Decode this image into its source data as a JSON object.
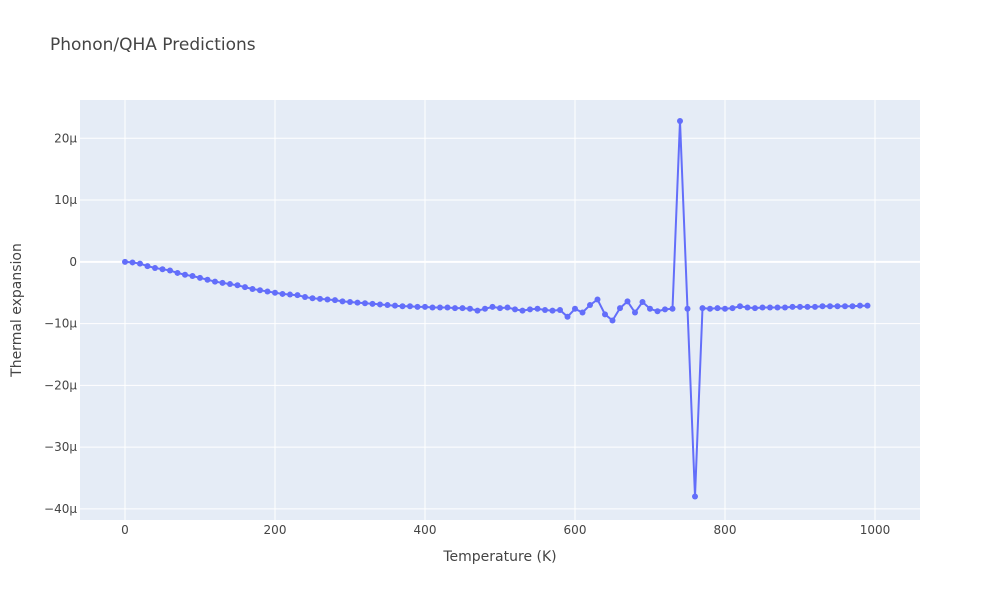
{
  "chart_data": {
    "type": "line",
    "title": "Phonon/QHA Predictions",
    "xlabel": "Temperature (K)",
    "ylabel": "Thermal expansion",
    "xlim": [
      -60,
      1060
    ],
    "ylim": [
      -41.8,
      26.2
    ],
    "x_ticks": [
      0,
      200,
      400,
      600,
      800,
      1000
    ],
    "y_ticks": [
      20,
      10,
      0,
      -10,
      -20,
      -30,
      -40
    ],
    "y_tick_labels": [
      "20µ",
      "10µ",
      "0",
      "−10µ",
      "−20µ",
      "−30µ",
      "−40µ"
    ],
    "grid": true,
    "series": [
      {
        "color": "#636efa",
        "x": [
          0,
          10,
          20,
          30,
          40,
          50,
          60,
          70,
          80,
          90,
          100,
          110,
          120,
          130,
          140,
          150,
          160,
          170,
          180,
          190,
          200,
          210,
          220,
          230,
          240,
          250,
          260,
          270,
          280,
          290,
          300,
          310,
          320,
          330,
          340,
          350,
          360,
          370,
          380,
          390,
          400,
          410,
          420,
          430,
          440,
          450,
          460,
          470,
          480,
          490,
          500,
          510,
          520,
          530,
          540,
          550,
          560,
          570,
          580,
          590,
          600,
          610,
          620,
          630,
          640,
          650,
          660,
          670,
          680,
          690,
          700,
          710,
          720,
          730,
          740,
          750,
          760,
          770,
          780,
          790,
          800,
          810,
          820,
          830,
          840,
          850,
          860,
          870,
          880,
          890,
          900,
          910,
          920,
          930,
          940,
          950,
          960,
          970,
          980,
          990
        ],
        "y": [
          0,
          -0.1,
          -0.3,
          -0.7,
          -1.0,
          -1.2,
          -1.4,
          -1.8,
          -2.1,
          -2.3,
          -2.6,
          -2.9,
          -3.2,
          -3.4,
          -3.6,
          -3.8,
          -4.1,
          -4.4,
          -4.6,
          -4.8,
          -5.0,
          -5.2,
          -5.3,
          -5.4,
          -5.7,
          -5.9,
          -6.0,
          -6.1,
          -6.2,
          -6.4,
          -6.5,
          -6.6,
          -6.7,
          -6.8,
          -6.9,
          -7.0,
          -7.1,
          -7.2,
          -7.2,
          -7.3,
          -7.3,
          -7.4,
          -7.4,
          -7.4,
          -7.5,
          -7.5,
          -7.6,
          -7.9,
          -7.6,
          -7.3,
          -7.5,
          -7.4,
          -7.7,
          -7.9,
          -7.7,
          -7.6,
          -7.8,
          -7.9,
          -7.8,
          -8.9,
          -7.6,
          -8.2,
          -7.0,
          -6.1,
          -8.5,
          -9.5,
          -7.5,
          -6.4,
          -8.2,
          -6.5,
          -7.6,
          -8.0,
          -7.7,
          -7.6,
          22.8,
          -7.6,
          -38.0,
          -7.5,
          -7.6,
          -7.5,
          -7.6,
          -7.5,
          -7.2,
          -7.4,
          -7.5,
          -7.4,
          -7.4,
          -7.4,
          -7.4,
          -7.3,
          -7.3,
          -7.3,
          -7.3,
          -7.2,
          -7.2,
          -7.2,
          -7.2,
          -7.2,
          -7.1,
          -7.1
        ]
      }
    ]
  }
}
